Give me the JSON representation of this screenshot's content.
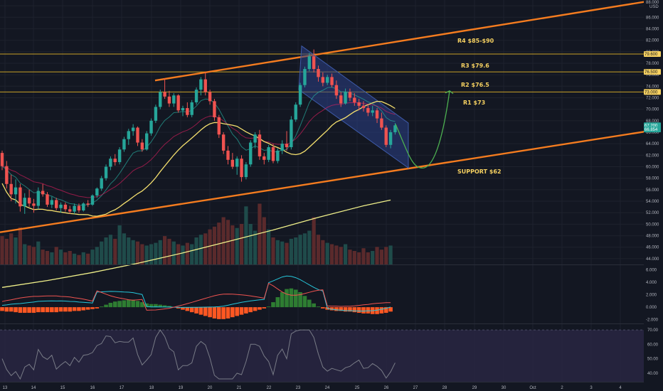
{
  "colors": {
    "background": "#131722",
    "grid": "#1e222d",
    "up": "#26a69a",
    "down": "#ef5350",
    "up_volume": "#1f4b4a",
    "down_volume": "#5a2a2c",
    "ema_short": "#26a69a",
    "ema_mid": "#e91e63",
    "sma_fast": "#f5e06e",
    "sma_slow": "#f0f08a",
    "trend": "#f57c1f",
    "level": "#c9a227",
    "channel_fill": "#2b3f86",
    "channel_stroke": "#3d5aa8",
    "projection": "#4caf50",
    "annotation": "#f5d060",
    "macd_line": "#26c6da",
    "signal_line": "#ef5350",
    "hist_pos": "#2e7d32",
    "hist_neg": "#ff5722",
    "rsi_line": "#787b86",
    "rsi_band": "#2a2745"
  },
  "annotations": {
    "r4": "R4 $85-$90",
    "r3": "R3 $79.6",
    "r2": "R2 $76.5",
    "r1": "R1 $73",
    "support": "SUPPORT $62"
  },
  "price_axis": {
    "top_label": "88.000",
    "unit": "USD",
    "ticks": [
      "86.000",
      "84.000",
      "82.000",
      "80.000",
      "78.000",
      "76.000",
      "74.000",
      "72.000",
      "70.000",
      "68.000",
      "66.000",
      "64.000",
      "62.000",
      "60.000",
      "58.000",
      "56.000",
      "54.000",
      "52.000",
      "50.000",
      "48.000",
      "46.000",
      "44.000"
    ],
    "markers": [
      "79.600",
      "76.500",
      "73.000",
      "67.200",
      "66.854"
    ]
  },
  "macd_axis": {
    "ticks": [
      "6.000",
      "4.000",
      "2.000",
      "0.000",
      "-2.000"
    ]
  },
  "rsi_axis": {
    "ticks": [
      "70.00",
      "60.00",
      "50.00",
      "40.00"
    ]
  },
  "x_axis": {
    "labels": [
      "13",
      "14",
      "15",
      "16",
      "17",
      "18",
      "19",
      "20",
      "21",
      "22",
      "23",
      "24",
      "25",
      "26",
      "27",
      "28",
      "29",
      "30",
      "Oct",
      "2",
      "3",
      "4"
    ]
  },
  "chart_data": {
    "type": "candlestick",
    "price_ylim": [
      43,
      89
    ],
    "levels": [
      {
        "name": "R3",
        "value": 79.6
      },
      {
        "name": "R2",
        "value": 76.5
      },
      {
        "name": "R1",
        "value": 73.0
      }
    ],
    "ohlc": [
      [
        62.4,
        62.8,
        59.4,
        60.1
      ],
      [
        60.1,
        61.0,
        56.2,
        57.0
      ],
      [
        57.0,
        58.6,
        54.0,
        55.2
      ],
      [
        55.2,
        57.8,
        53.6,
        56.4
      ],
      [
        56.4,
        57.0,
        52.2,
        53.1
      ],
      [
        53.1,
        55.4,
        51.8,
        54.6
      ],
      [
        54.6,
        56.0,
        53.0,
        53.6
      ],
      [
        53.6,
        54.4,
        52.0,
        53.2
      ],
      [
        53.2,
        56.4,
        52.6,
        55.8
      ],
      [
        55.8,
        57.0,
        54.8,
        55.2
      ],
      [
        55.2,
        55.6,
        53.0,
        53.4
      ],
      [
        53.4,
        54.8,
        52.8,
        54.2
      ],
      [
        54.2,
        54.6,
        52.4,
        52.8
      ],
      [
        52.8,
        53.8,
        52.0,
        53.4
      ],
      [
        53.4,
        53.8,
        52.2,
        52.6
      ],
      [
        52.6,
        53.2,
        51.8,
        52.2
      ],
      [
        52.2,
        53.6,
        51.8,
        53.2
      ],
      [
        53.2,
        53.6,
        52.0,
        52.4
      ],
      [
        52.4,
        53.8,
        52.2,
        53.6
      ],
      [
        53.6,
        54.2,
        53.0,
        53.4
      ],
      [
        53.4,
        55.2,
        53.2,
        55.0
      ],
      [
        55.0,
        56.4,
        54.6,
        56.2
      ],
      [
        56.2,
        58.4,
        55.8,
        58.0
      ],
      [
        58.0,
        60.4,
        57.6,
        60.0
      ],
      [
        60.0,
        61.8,
        59.4,
        61.4
      ],
      [
        61.4,
        62.2,
        60.2,
        60.8
      ],
      [
        60.8,
        63.4,
        60.4,
        63.0
      ],
      [
        63.0,
        65.2,
        62.6,
        64.8
      ],
      [
        64.8,
        66.6,
        63.8,
        66.2
      ],
      [
        66.2,
        67.4,
        65.4,
        66.8
      ],
      [
        66.8,
        67.0,
        63.6,
        64.2
      ],
      [
        64.2,
        64.8,
        62.6,
        63.0
      ],
      [
        63.0,
        66.2,
        62.8,
        65.8
      ],
      [
        65.8,
        68.4,
        65.4,
        68.0
      ],
      [
        68.0,
        70.8,
        67.6,
        70.4
      ],
      [
        70.4,
        73.4,
        70.0,
        73.0
      ],
      [
        73.0,
        75.4,
        71.8,
        72.2
      ],
      [
        72.2,
        73.2,
        70.4,
        71.0
      ],
      [
        71.0,
        72.8,
        70.4,
        72.4
      ],
      [
        72.4,
        72.6,
        69.4,
        69.8
      ],
      [
        69.8,
        70.6,
        68.8,
        70.2
      ],
      [
        70.2,
        71.2,
        68.6,
        69.0
      ],
      [
        69.0,
        71.6,
        68.6,
        71.2
      ],
      [
        71.2,
        73.8,
        70.8,
        73.4
      ],
      [
        73.4,
        75.6,
        72.4,
        75.2
      ],
      [
        75.2,
        76.4,
        72.4,
        73.0
      ],
      [
        73.0,
        73.4,
        70.8,
        71.4
      ],
      [
        71.4,
        71.8,
        68.0,
        68.6
      ],
      [
        68.6,
        69.0,
        65.0,
        65.6
      ],
      [
        65.6,
        66.0,
        62.2,
        62.8
      ],
      [
        62.8,
        63.6,
        60.4,
        61.2
      ],
      [
        61.2,
        62.4,
        59.6,
        60.0
      ],
      [
        60.0,
        61.8,
        58.6,
        61.4
      ],
      [
        61.4,
        62.0,
        57.4,
        58.2
      ],
      [
        58.2,
        60.8,
        57.8,
        60.4
      ],
      [
        60.4,
        64.6,
        60.0,
        64.2
      ],
      [
        64.2,
        66.0,
        63.2,
        65.6
      ],
      [
        65.6,
        66.4,
        61.2,
        61.8
      ],
      [
        61.8,
        62.4,
        60.4,
        61.2
      ],
      [
        61.2,
        63.8,
        60.8,
        63.4
      ],
      [
        63.4,
        64.0,
        60.6,
        61.0
      ],
      [
        61.0,
        63.2,
        60.6,
        62.8
      ],
      [
        62.8,
        64.6,
        62.2,
        64.0
      ],
      [
        64.0,
        66.2,
        62.8,
        63.4
      ],
      [
        63.4,
        68.8,
        63.0,
        68.2
      ],
      [
        68.2,
        71.2,
        67.8,
        70.8
      ],
      [
        70.8,
        74.6,
        70.4,
        74.2
      ],
      [
        74.2,
        77.4,
        73.8,
        77.0
      ],
      [
        77.0,
        79.8,
        76.6,
        79.2
      ],
      [
        79.2,
        80.4,
        76.4,
        77.0
      ],
      [
        77.0,
        77.6,
        74.8,
        75.6
      ],
      [
        75.6,
        76.4,
        74.0,
        74.6
      ],
      [
        74.6,
        76.0,
        74.2,
        75.6
      ],
      [
        75.6,
        76.2,
        73.8,
        74.2
      ],
      [
        74.2,
        75.0,
        71.8,
        72.4
      ],
      [
        72.4,
        73.0,
        70.4,
        71.0
      ],
      [
        71.0,
        73.6,
        70.8,
        73.0
      ],
      [
        73.0,
        73.6,
        71.4,
        72.0
      ],
      [
        72.0,
        72.8,
        70.6,
        71.2
      ],
      [
        71.2,
        71.8,
        69.8,
        70.6
      ],
      [
        70.6,
        71.4,
        69.6,
        70.2
      ],
      [
        70.2,
        70.8,
        68.8,
        69.4
      ],
      [
        69.4,
        70.6,
        68.8,
        69.8
      ],
      [
        69.8,
        70.2,
        67.6,
        68.4
      ],
      [
        68.4,
        69.4,
        66.4,
        66.8
      ],
      [
        66.8,
        67.2,
        63.4,
        63.8
      ],
      [
        63.8,
        66.4,
        63.2,
        66.0
      ],
      [
        66.0,
        67.6,
        65.6,
        67.2
      ]
    ],
    "volume": [
      0.42,
      0.38,
      0.46,
      0.4,
      0.55,
      0.3,
      0.28,
      0.26,
      0.34,
      0.22,
      0.2,
      0.18,
      0.26,
      0.22,
      0.18,
      0.2,
      0.16,
      0.14,
      0.18,
      0.16,
      0.22,
      0.26,
      0.34,
      0.4,
      0.44,
      0.38,
      0.58,
      0.46,
      0.4,
      0.36,
      0.34,
      0.3,
      0.28,
      0.3,
      0.32,
      0.36,
      0.42,
      0.38,
      0.34,
      0.3,
      0.28,
      0.32,
      0.3,
      0.4,
      0.44,
      0.46,
      0.52,
      0.56,
      0.62,
      0.7,
      0.66,
      0.58,
      0.54,
      0.6,
      0.86,
      0.6,
      0.5,
      0.9,
      0.7,
      0.52,
      0.4,
      0.36,
      0.34,
      0.32,
      0.38,
      0.4,
      0.44,
      0.46,
      0.5,
      0.7,
      0.44,
      0.36,
      0.32,
      0.3,
      0.28,
      0.26,
      0.3,
      0.22,
      0.2,
      0.18,
      0.24,
      0.18,
      0.2,
      0.26,
      0.22,
      0.26,
      0.28
    ],
    "sma_slow": [
      [
        0,
        39
      ],
      [
        10,
        40.2
      ],
      [
        20,
        41.6
      ],
      [
        30,
        43.2
      ],
      [
        40,
        45.0
      ],
      [
        50,
        47.0
      ],
      [
        60,
        49.0
      ],
      [
        70,
        51.2
      ],
      [
        80,
        53.2
      ],
      [
        86,
        54.2
      ]
    ],
    "macd_ylim": [
      -2.6,
      6.6
    ],
    "macd_hist": [
      -0.6,
      -0.7,
      -0.7,
      -0.8,
      -0.9,
      -0.9,
      -0.9,
      -0.9,
      -0.8,
      -0.8,
      -0.8,
      -0.8,
      -0.8,
      -0.7,
      -0.7,
      -0.7,
      -0.6,
      -0.6,
      -0.5,
      -0.4,
      -0.3,
      -0.2,
      0.1,
      0.4,
      0.7,
      0.9,
      1.0,
      1.1,
      1.2,
      1.2,
      1.0,
      0.8,
      0.6,
      0.5,
      0.5,
      0.4,
      0.3,
      0.2,
      0.0,
      -0.2,
      -0.4,
      -0.6,
      -0.8,
      -1.0,
      -1.2,
      -1.4,
      -1.6,
      -1.8,
      -1.9,
      -1.9,
      -1.8,
      -1.6,
      -1.4,
      -1.2,
      -1.0,
      -0.8,
      -0.6,
      -0.4,
      -0.2,
      0.1,
      0.8,
      1.6,
      2.4,
      2.9,
      3.0,
      2.8,
      2.4,
      1.8,
      1.2,
      0.6,
      0.1,
      -0.2,
      -0.4,
      -0.5,
      -0.6,
      -0.6,
      -0.7,
      -0.7,
      -0.8,
      -0.9,
      -1.0,
      -1.0,
      -1.1,
      -1.1,
      -1.0,
      -0.9,
      -0.7
    ],
    "rsi_ylim": [
      34,
      74
    ],
    "rsi_levels": [
      70,
      30
    ]
  }
}
